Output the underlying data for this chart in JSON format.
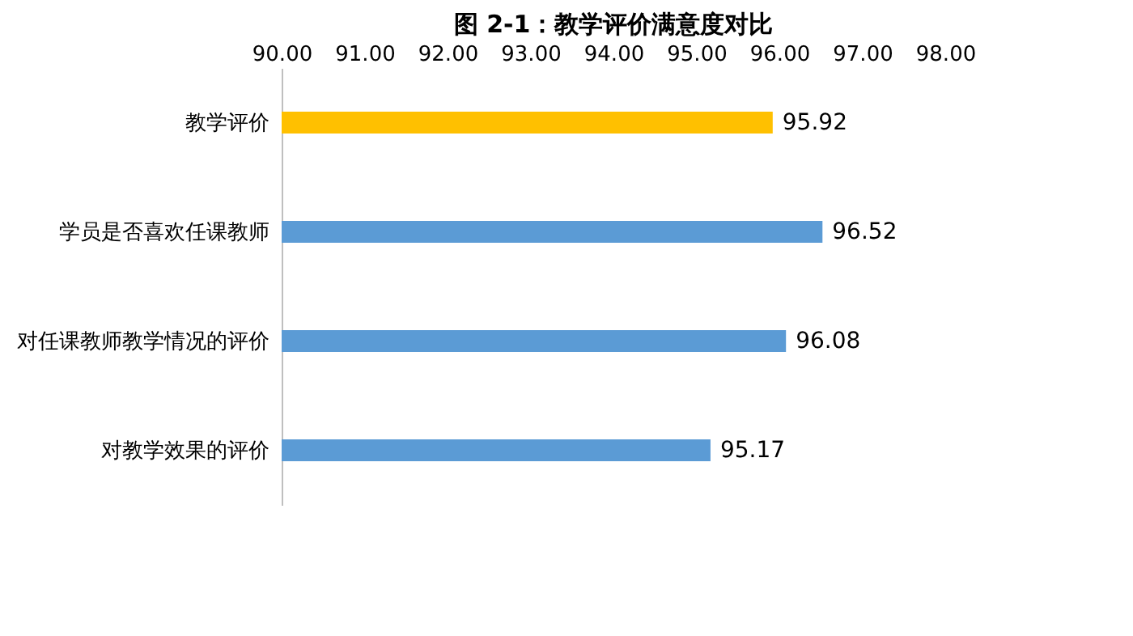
{
  "chart_data": {
    "type": "bar",
    "orientation": "horizontal",
    "title": "图 2-1：教学评价满意度对比",
    "categories": [
      "教学评价",
      "学员是否喜欢任课教师",
      "对任课教师教学情况的评价",
      "对教学效果的评价"
    ],
    "values": [
      95.92,
      96.52,
      96.08,
      95.17
    ],
    "colors": [
      "#ffc000",
      "#5b9bd5",
      "#5b9bd5",
      "#5b9bd5"
    ],
    "xlim": [
      90,
      98
    ],
    "xticks": [
      {
        "value": 90,
        "label": "90.00"
      },
      {
        "value": 91,
        "label": "91.00"
      },
      {
        "value": 92,
        "label": "92.00"
      },
      {
        "value": 93,
        "label": "93.00"
      },
      {
        "value": 94,
        "label": "94.00"
      },
      {
        "value": 95,
        "label": "95.00"
      },
      {
        "value": 96,
        "label": "96.00"
      },
      {
        "value": 97,
        "label": "97.00"
      },
      {
        "value": 98,
        "label": "98.00"
      }
    ],
    "data_labels": true,
    "grid": false
  }
}
